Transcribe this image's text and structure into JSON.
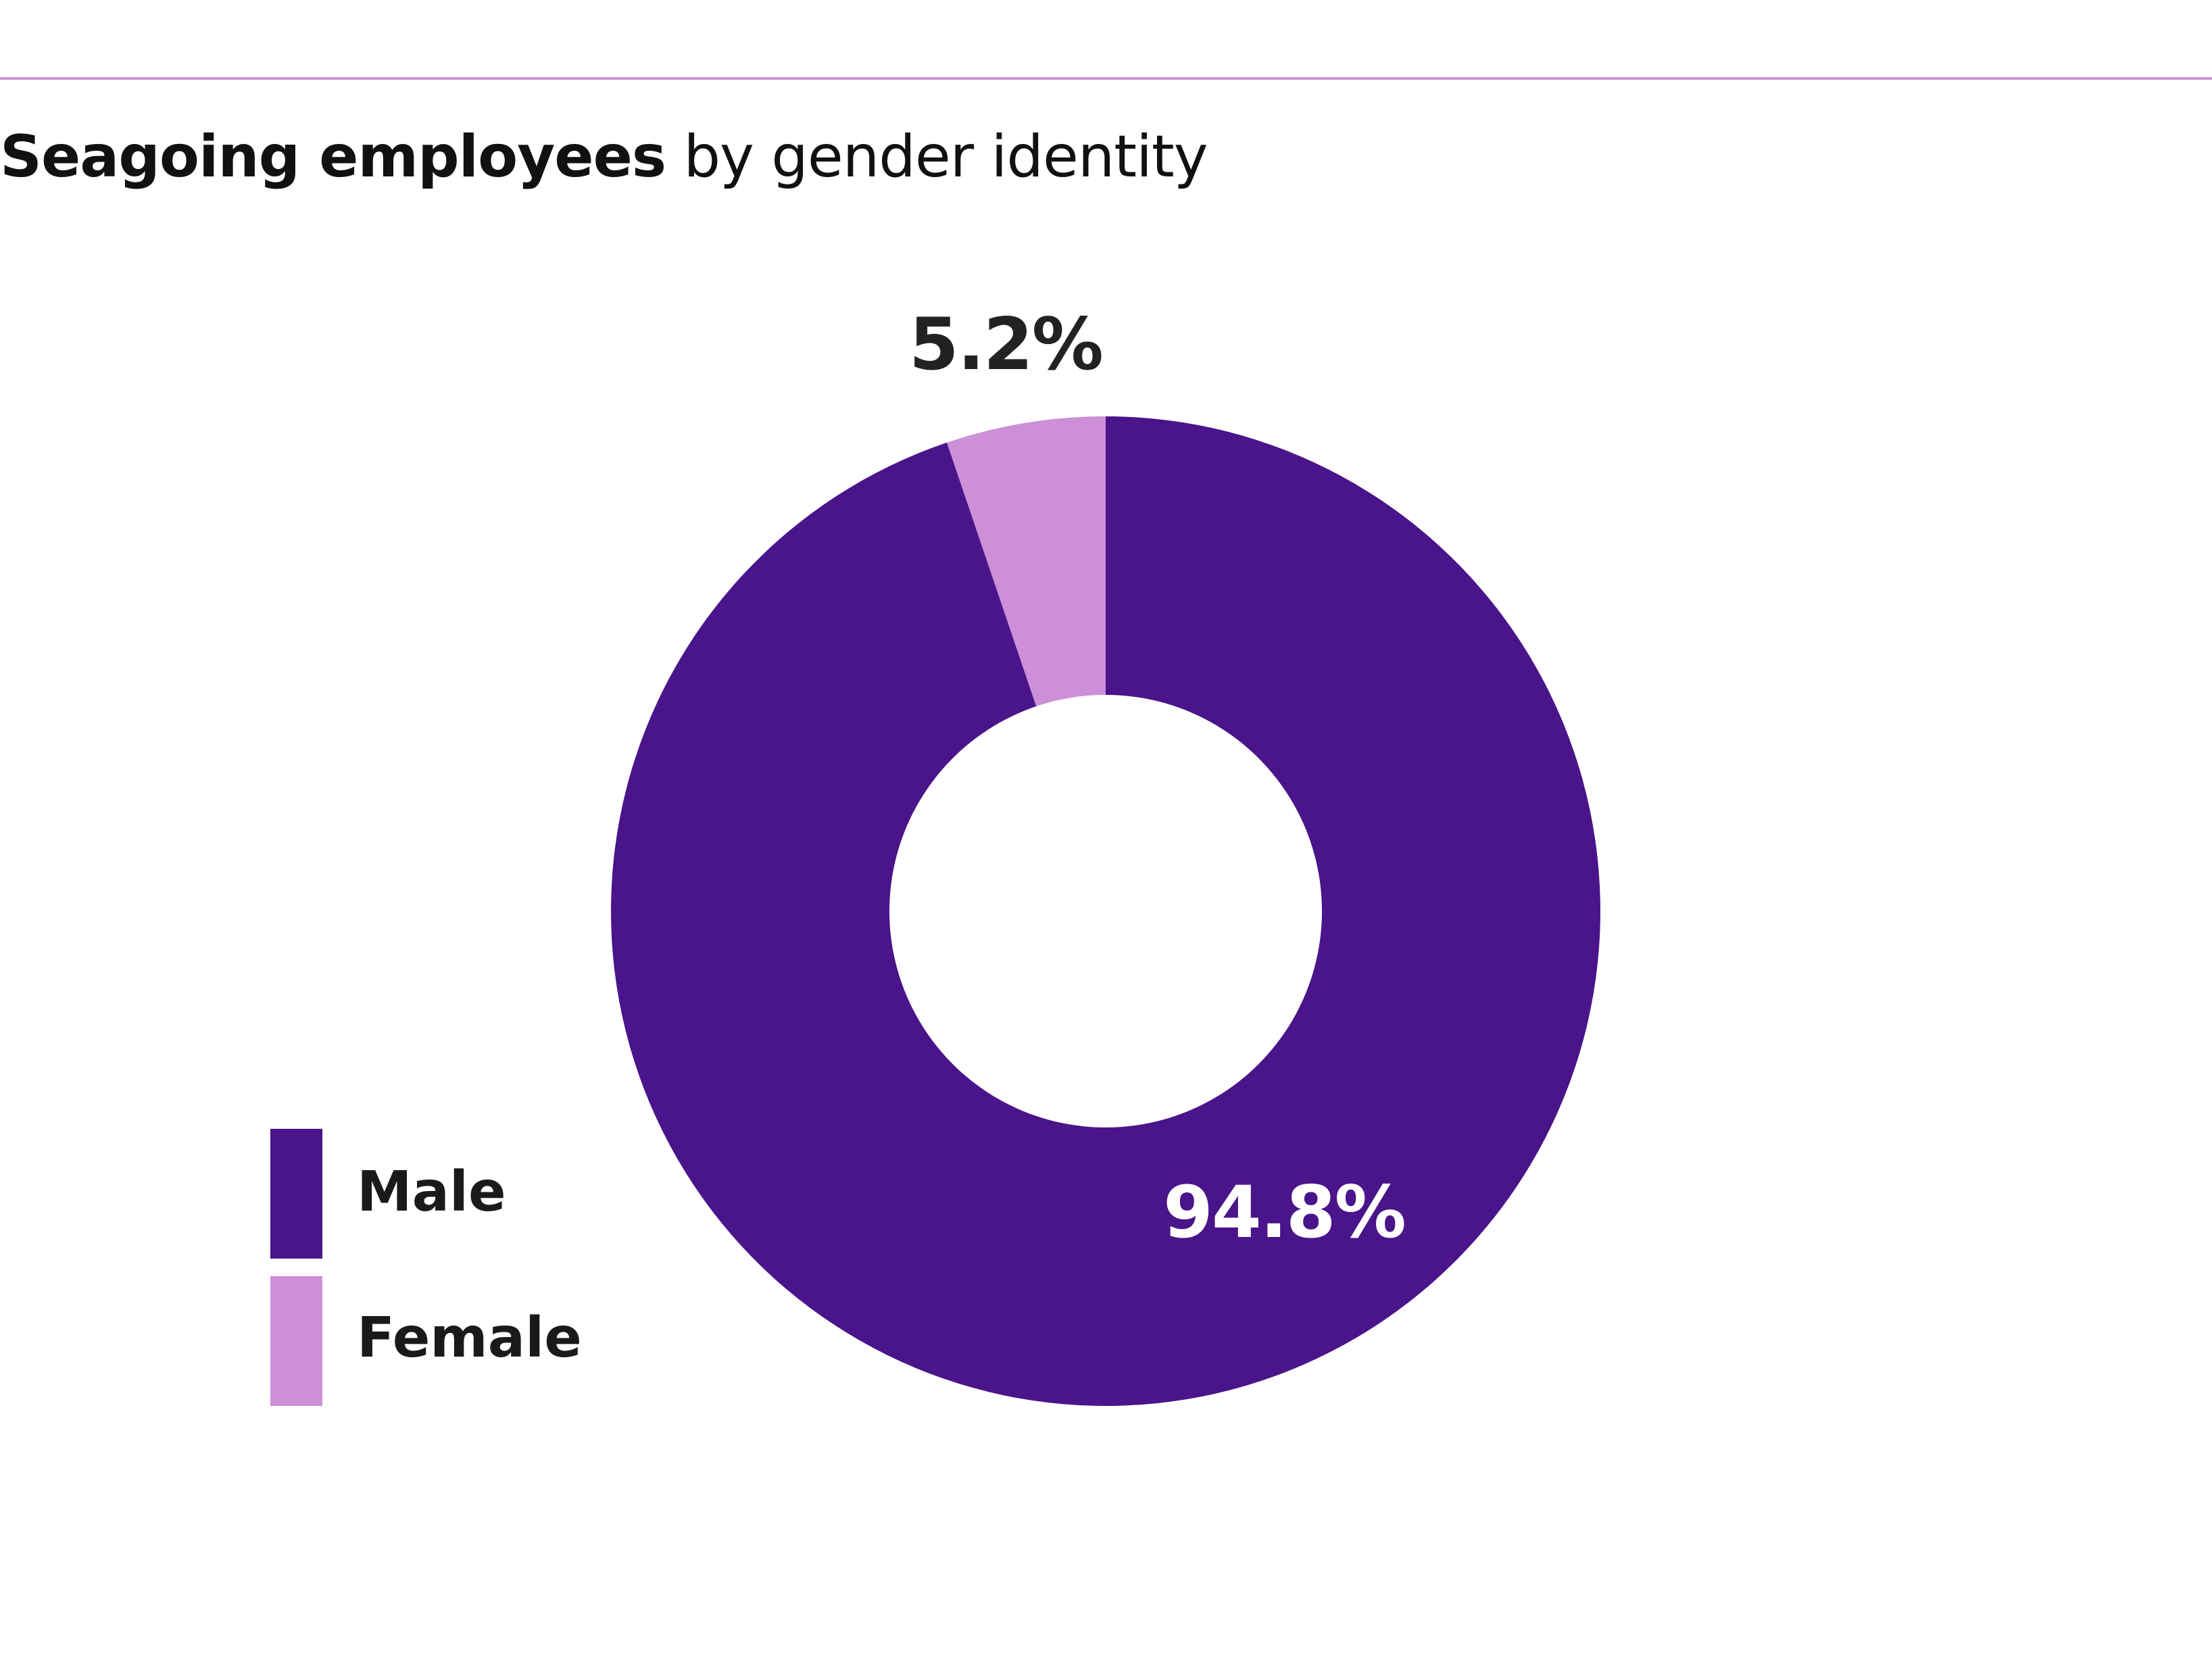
{
  "header": {
    "title_bold": "Seagoing employees",
    "title_rest": " by gender identity",
    "rule_color": "#cf93d9"
  },
  "chart_data": {
    "type": "pie",
    "variant": "donut",
    "title": "Seagoing employees by gender identity",
    "categories": [
      "Male",
      "Female"
    ],
    "values": [
      94.8,
      5.2
    ],
    "unit": "%",
    "labels": [
      "94.8%",
      "5.2%"
    ],
    "colors": [
      "#4a148a",
      "#cd8fd8"
    ],
    "start": "12 o'clock, clockwise",
    "legend_position": "bottom-left"
  },
  "legend": {
    "items": [
      {
        "label": "Male",
        "color": "#4a148a"
      },
      {
        "label": "Female",
        "color": "#cd8fd8"
      }
    ]
  }
}
